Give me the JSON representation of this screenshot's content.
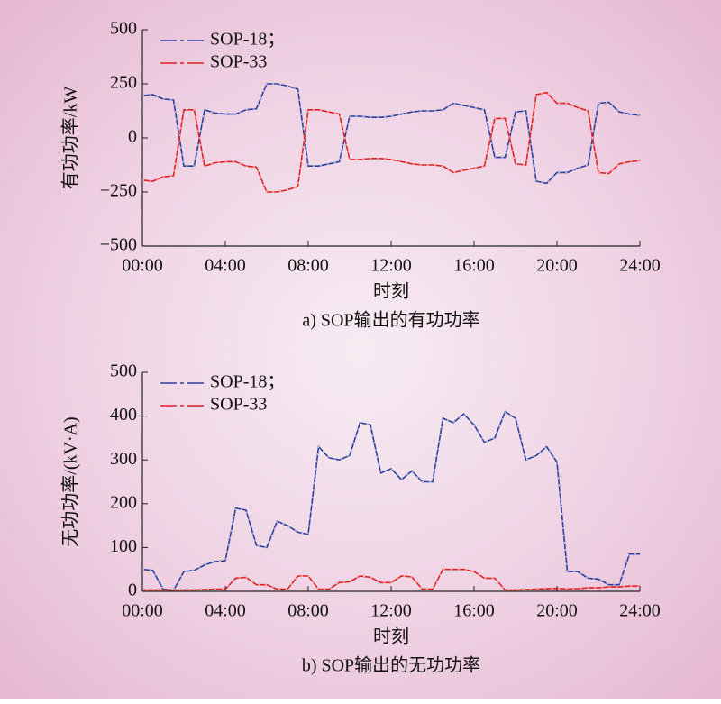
{
  "chart_data": [
    {
      "type": "line",
      "title": "a) SOP输出的有功功率",
      "xlabel": "时刻",
      "ylabel": "有功功率/kW",
      "legend": "upper left",
      "x": [
        0,
        0.5,
        1,
        1.5,
        2,
        2.5,
        3,
        3.5,
        4,
        4.5,
        5,
        5.5,
        6,
        6.5,
        7,
        7.5,
        8,
        8.5,
        9,
        9.5,
        10,
        10.5,
        11,
        11.5,
        12,
        12.5,
        13,
        13.5,
        14,
        14.5,
        15,
        15.5,
        16,
        16.5,
        17,
        17.5,
        18,
        18.5,
        19,
        19.5,
        20,
        20.5,
        21,
        21.5,
        22,
        22.5,
        23,
        23.5,
        24
      ],
      "xlim": [
        0,
        24
      ],
      "xticks": [
        {
          "value": 0,
          "label": "00:00"
        },
        {
          "value": 4,
          "label": "04:00"
        },
        {
          "value": 8,
          "label": "08:00"
        },
        {
          "value": 12,
          "label": "12:00"
        },
        {
          "value": 16,
          "label": "16:00"
        },
        {
          "value": 20,
          "label": "20:00"
        },
        {
          "value": 24,
          "label": "24:00"
        }
      ],
      "ylim": [
        -500,
        500
      ],
      "yticks": [
        {
          "value": -500,
          "label": "−500"
        },
        {
          "value": -250,
          "label": "−250"
        },
        0,
        250,
        500
      ],
      "series": [
        {
          "name": "SOP-18；",
          "color": "#2b3f9e",
          "values": [
            195,
            200,
            180,
            175,
            -130,
            -130,
            130,
            115,
            110,
            110,
            130,
            135,
            250,
            250,
            240,
            225,
            -130,
            -130,
            -120,
            -110,
            100,
            100,
            95,
            95,
            100,
            110,
            120,
            125,
            125,
            130,
            160,
            150,
            140,
            130,
            -90,
            -90,
            120,
            125,
            -200,
            -210,
            -160,
            -160,
            -140,
            -125,
            160,
            165,
            120,
            110,
            105
          ]
        },
        {
          "name": "SOP-33",
          "color": "#e02020",
          "values": [
            -195,
            -200,
            -180,
            -175,
            130,
            130,
            -130,
            -115,
            -110,
            -110,
            -130,
            -135,
            -250,
            -250,
            -240,
            -225,
            130,
            130,
            120,
            110,
            -100,
            -100,
            -95,
            -95,
            -100,
            -110,
            -120,
            -125,
            -125,
            -130,
            -160,
            -150,
            -140,
            -130,
            90,
            90,
            -120,
            -125,
            200,
            210,
            160,
            160,
            140,
            125,
            -160,
            -165,
            -120,
            -110,
            -105
          ]
        }
      ]
    },
    {
      "type": "line",
      "title": "b) SOP输出的无功功率",
      "xlabel": "时刻",
      "ylabel": "无功功率/(kV·A)",
      "legend": "upper left",
      "x": [
        0,
        0.5,
        1,
        1.5,
        2,
        2.5,
        3,
        3.5,
        4,
        4.5,
        5,
        5.5,
        6,
        6.5,
        7,
        7.5,
        8,
        8.5,
        9,
        9.5,
        10,
        10.5,
        11,
        11.5,
        12,
        12.5,
        13,
        13.5,
        14,
        14.5,
        15,
        15.5,
        16,
        16.5,
        17,
        17.5,
        18,
        18.5,
        19,
        19.5,
        20,
        20.5,
        21,
        21.5,
        22,
        22.5,
        23,
        23.5,
        24
      ],
      "xlim": [
        0,
        24
      ],
      "xticks": [
        {
          "value": 0,
          "label": "00:00"
        },
        {
          "value": 4,
          "label": "04:00"
        },
        {
          "value": 8,
          "label": "08:00"
        },
        {
          "value": 12,
          "label": "12:00"
        },
        {
          "value": 16,
          "label": "16:00"
        },
        {
          "value": 20,
          "label": "20:00"
        },
        {
          "value": 24,
          "label": "24:00"
        }
      ],
      "ylim": [
        0,
        500
      ],
      "yticks": [
        0,
        100,
        200,
        300,
        400,
        500
      ],
      "series": [
        {
          "name": "SOP-18；",
          "color": "#2b3f9e",
          "values": [
            50,
            48,
            5,
            2,
            45,
            48,
            60,
            68,
            70,
            190,
            185,
            105,
            100,
            160,
            150,
            135,
            130,
            330,
            305,
            300,
            310,
            385,
            380,
            270,
            280,
            255,
            275,
            250,
            250,
            395,
            385,
            405,
            380,
            340,
            350,
            410,
            395,
            300,
            310,
            330,
            295,
            45,
            45,
            30,
            28,
            15,
            15,
            85,
            85
          ]
        },
        {
          "name": "SOP-33",
          "color": "#e02020",
          "values": [
            3,
            3,
            3,
            3,
            3,
            3,
            4,
            5,
            5,
            30,
            32,
            15,
            15,
            5,
            5,
            35,
            35,
            5,
            5,
            20,
            22,
            35,
            32,
            20,
            20,
            35,
            33,
            5,
            5,
            50,
            50,
            50,
            45,
            30,
            30,
            3,
            3,
            4,
            5,
            6,
            7,
            5,
            6,
            8,
            8,
            10,
            10,
            12,
            12
          ]
        }
      ]
    }
  ]
}
